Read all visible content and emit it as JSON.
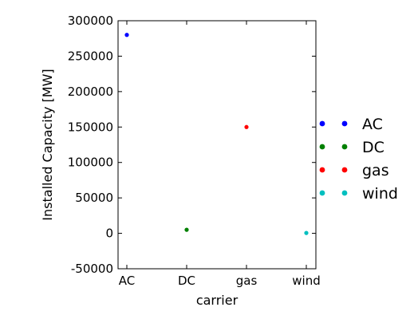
{
  "chart_data": {
    "type": "scatter",
    "title": "",
    "xlabel": "carrier",
    "ylabel": "Installed Capacity [MW]",
    "categories": [
      "AC",
      "DC",
      "gas",
      "wind"
    ],
    "ylim": [
      -50000,
      300000
    ],
    "yticks": [
      -50000,
      0,
      50000,
      100000,
      150000,
      200000,
      250000,
      300000
    ],
    "grid": false,
    "legend_position": "right",
    "series": [
      {
        "name": "AC",
        "category": "AC",
        "value": 280000,
        "color": "#0000ff"
      },
      {
        "name": "DC",
        "category": "DC",
        "value": 5000,
        "color": "#008000"
      },
      {
        "name": "gas",
        "category": "gas",
        "value": 150000,
        "color": "#ff0000"
      },
      {
        "name": "wind",
        "category": "wind",
        "value": 500,
        "color": "#00bfbf"
      }
    ]
  }
}
